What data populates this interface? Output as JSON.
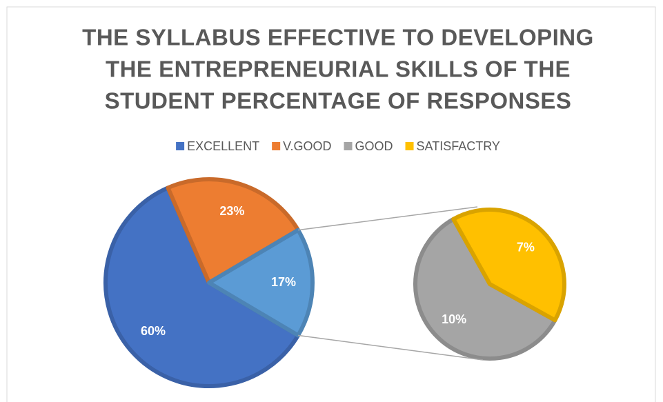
{
  "chart_data": {
    "type": "pie-of-pie",
    "title": [
      "THE SYLLABUS EFFECTIVE TO DEVELOPING",
      "THE ENTREPRENEURIAL SKILLS OF THE",
      "STUDENT PERCENTAGE OF RESPONSES"
    ],
    "categories": [
      "EXCELLENT",
      "V.GOOD",
      "GOOD",
      "SATISFACTRY"
    ],
    "values": [
      60,
      23,
      10,
      7
    ],
    "value_labels": [
      "60%",
      "23%",
      "10%",
      "7%"
    ],
    "colors": [
      "#4472c4",
      "#ed7d31",
      "#a5a5a5",
      "#ffc000"
    ],
    "second_plot_points": 2,
    "other": {
      "value": 17,
      "value_label": "17%",
      "color": "#5b9bd5"
    },
    "legend": "top"
  }
}
